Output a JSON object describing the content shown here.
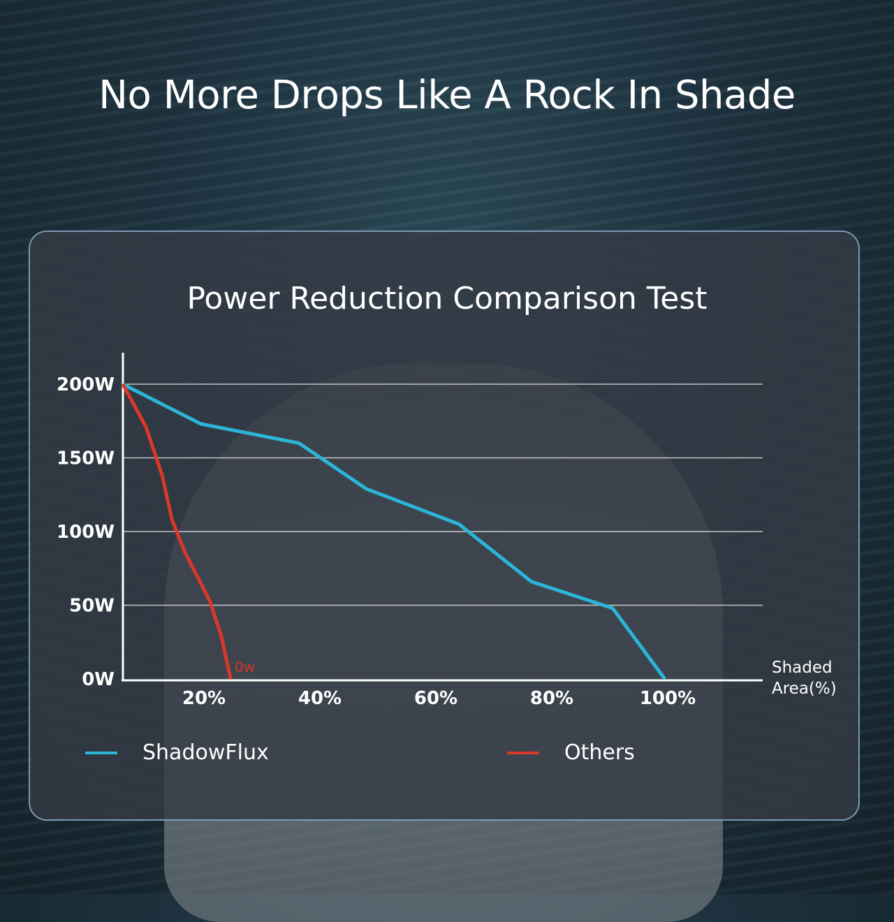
{
  "headline": "No More Drops Like A Rock In Shade",
  "chart_data": {
    "type": "line",
    "title": "Power Reduction Comparison Test",
    "xlabel": [
      "Shaded",
      "Area(%)"
    ],
    "ylabel": "",
    "x_ticks": [
      {
        "value": 20,
        "label": "20%"
      },
      {
        "value": 40,
        "label": "40%"
      },
      {
        "value": 60,
        "label": "60%"
      },
      {
        "value": 80,
        "label": "80%"
      },
      {
        "value": 100,
        "label": "100%"
      }
    ],
    "y_ticks": [
      {
        "value": 0,
        "label": "0W"
      },
      {
        "value": 50,
        "label": "50W"
      },
      {
        "value": 100,
        "label": "100W"
      },
      {
        "value": 150,
        "label": "150W"
      },
      {
        "value": 200,
        "label": "200W"
      }
    ],
    "xlim": [
      6,
      116
    ],
    "ylim": [
      0,
      200
    ],
    "grid": "horizontal",
    "legend": "bottom",
    "series": [
      {
        "name": "ShadowFlux",
        "color": "#2bb5d8",
        "x": [
          6,
          19.5,
          36.4,
          48,
          64,
          76.5,
          90.5,
          99.5
        ],
        "y": [
          200,
          173,
          160,
          129,
          105,
          66,
          48,
          0
        ]
      },
      {
        "name": "Others",
        "color": "#d9382a",
        "x": [
          6,
          10,
          12.8,
          14.5,
          16.7,
          21,
          23,
          24.6
        ],
        "y": [
          200,
          171,
          138,
          108,
          86,
          53,
          29,
          0
        ]
      }
    ],
    "annotations": [
      {
        "series": "Others",
        "x": 24.6,
        "y": 0,
        "text": "0w"
      }
    ]
  }
}
